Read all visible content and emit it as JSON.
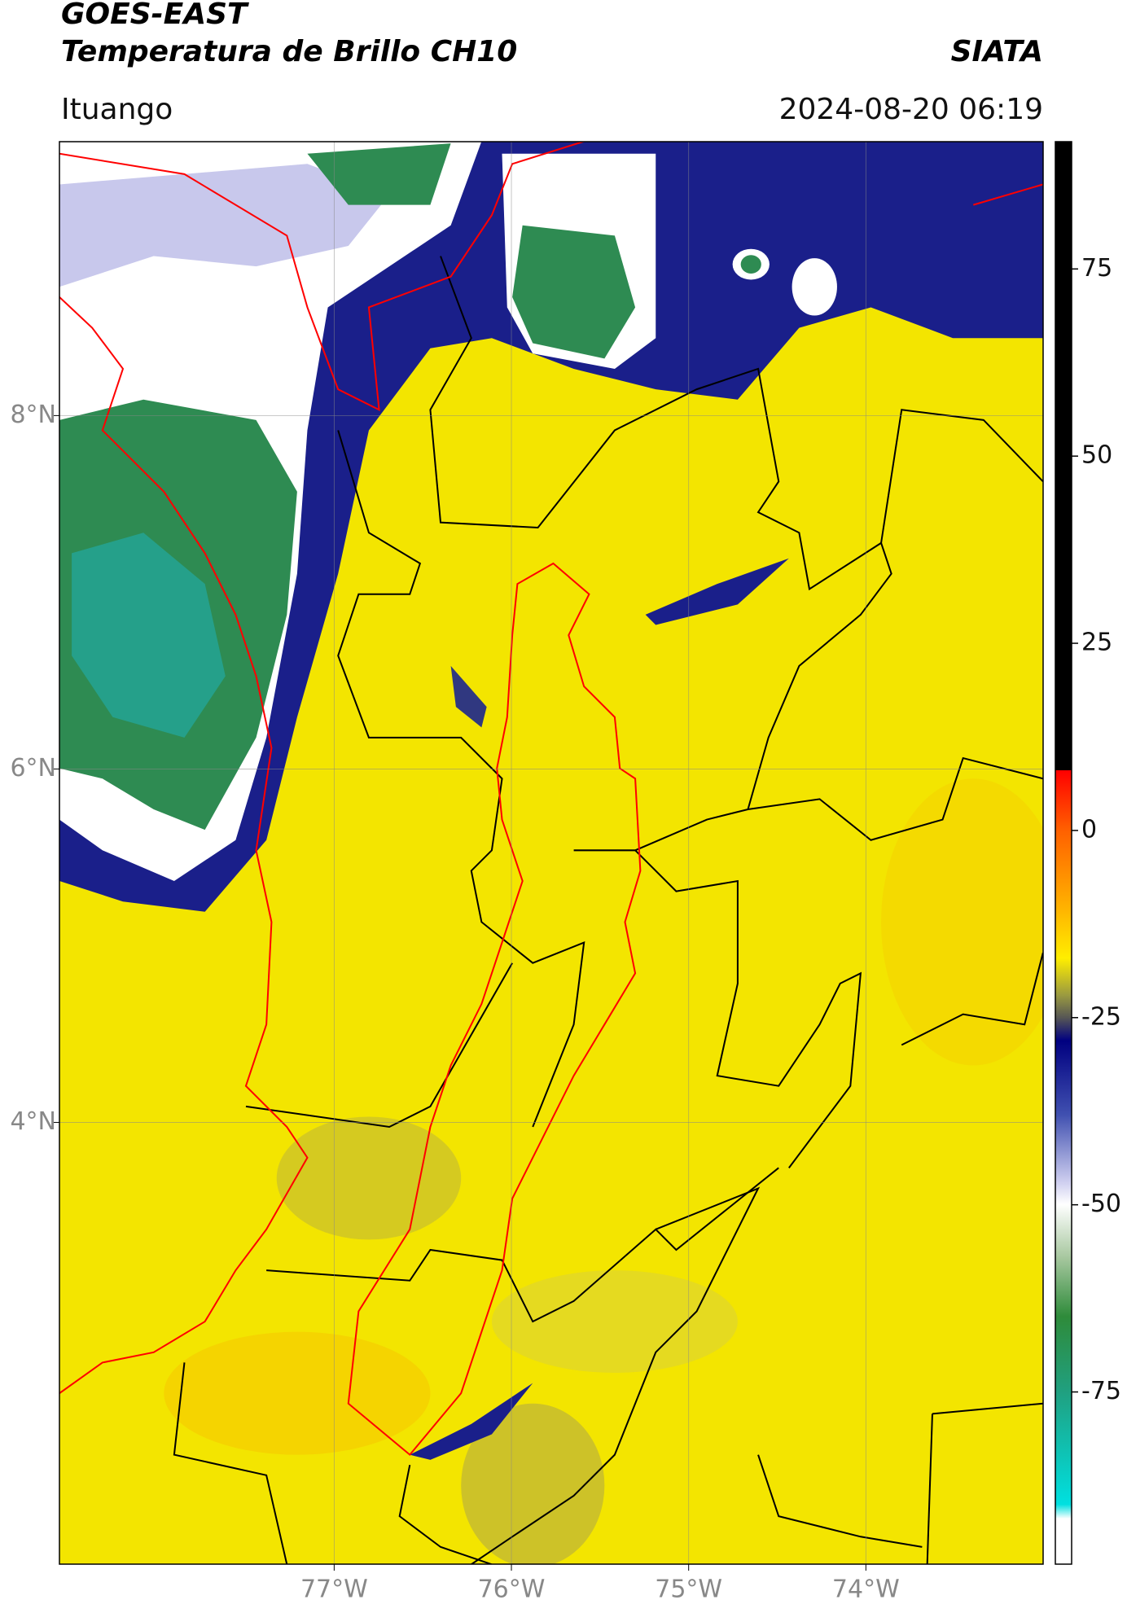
{
  "chart_data": {
    "type": "map",
    "title": "GOES-EAST",
    "subtitle": "Temperatura de Brillo CH10",
    "source": "SIATA",
    "location": "Ituango",
    "datetime": "2024-08-20 06:19",
    "xlim": [
      -78.55,
      -73.0
    ],
    "ylim": [
      1.5,
      9.55
    ],
    "xticks": [
      {
        "value": -77,
        "label": "77°W"
      },
      {
        "value": -76,
        "label": "76°W"
      },
      {
        "value": -75,
        "label": "75°W"
      },
      {
        "value": -74,
        "label": "74°W"
      }
    ],
    "yticks": [
      {
        "value": 4,
        "label": "4°N"
      },
      {
        "value": 6,
        "label": "6°N"
      },
      {
        "value": 8,
        "label": "8°N"
      }
    ],
    "grid": true,
    "colorbar": {
      "clim": [
        -98,
        92
      ],
      "ticks": [
        -75,
        -50,
        -25,
        0,
        25,
        50,
        75
      ]
    }
  }
}
